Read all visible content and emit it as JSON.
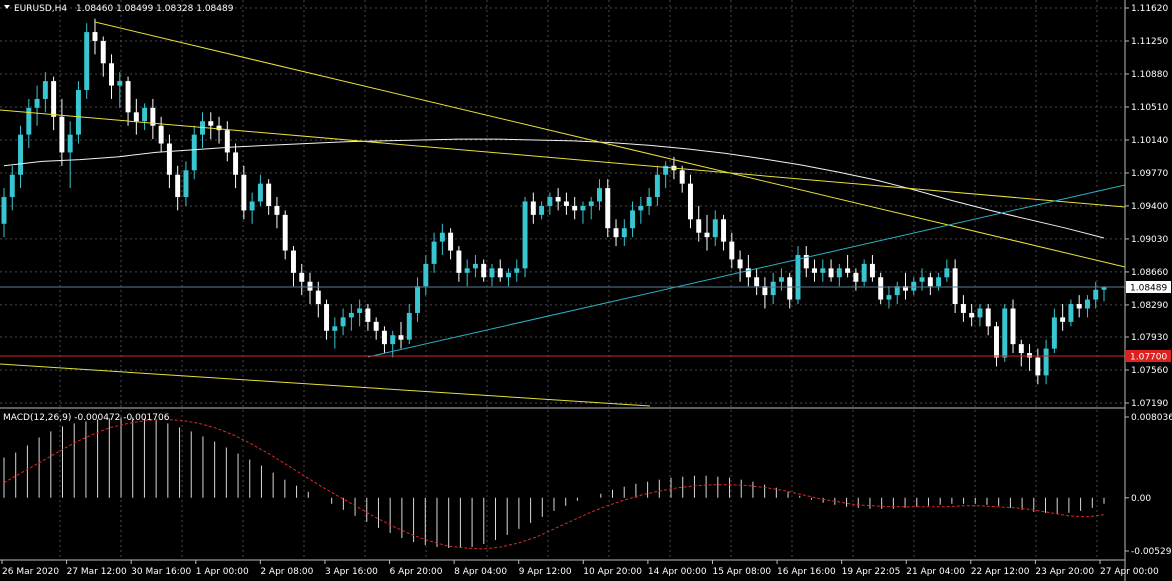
{
  "symbol_label": "EURUSD,H4",
  "ohlc_text": "1.08460 1.08499 1.08328 1.08489",
  "macd_label": "MACD(12,26,9) -0.000472 -0.001706",
  "current_price_label": "1.08489",
  "level_price_label": "1.07700",
  "colors": {
    "background": "#000000",
    "grid": "#4a4a4a",
    "bull_candle": "#39c6d1",
    "bear_candle": "#ffffff",
    "trendline": "#e8e03a",
    "ma_line": "#f2f2f2",
    "support_line": "#dd2020",
    "ascending_line": "#2bb2c4",
    "macd_histogram": "#d9d9d9",
    "macd_signal": "#e02828"
  },
  "chart_data": {
    "type": "candlestick",
    "timeframe": "H4",
    "price_axis": {
      "range": [
        1.0719,
        1.1162
      ],
      "ticks": [
        "1.11620",
        "1.11250",
        "1.10880",
        "1.10510",
        "1.10140",
        "1.09770",
        "1.09400",
        "1.09030",
        "1.08660",
        "1.08290",
        "1.07930",
        "1.07560",
        "1.07190"
      ]
    },
    "time_labels": [
      "26 Mar 2020",
      "27 Mar 12:00",
      "30 Mar 16:00",
      "1 Apr 00:00",
      "2 Apr 08:00",
      "3 Apr 16:00",
      "6 Apr 20:00",
      "8 Apr 04:00",
      "9 Apr 12:00",
      "10 Apr 20:00",
      "14 Apr 00:00",
      "15 Apr 08:00",
      "16 Apr 16:00",
      "19 Apr 22:05",
      "21 Apr 04:00",
      "22 Apr 12:00",
      "23 Apr 20:00",
      "27 Apr 00:00"
    ],
    "candles": [
      [
        1.092,
        1.096,
        1.0905,
        1.095
      ],
      [
        1.095,
        1.0985,
        1.0935,
        1.0975
      ],
      [
        1.0975,
        1.103,
        1.096,
        1.102
      ],
      [
        1.102,
        1.106,
        1.1005,
        1.105
      ],
      [
        1.105,
        1.1075,
        1.103,
        1.106
      ],
      [
        1.106,
        1.109,
        1.1045,
        1.108
      ],
      [
        1.108,
        1.1085,
        1.1025,
        1.104
      ],
      [
        1.104,
        1.106,
        1.0985,
        1.1
      ],
      [
        1.1,
        1.1035,
        1.096,
        1.102
      ],
      [
        1.102,
        1.108,
        1.101,
        1.107
      ],
      [
        1.107,
        1.1145,
        1.106,
        1.1135
      ],
      [
        1.1135,
        1.115,
        1.111,
        1.1125
      ],
      [
        1.1125,
        1.113,
        1.1085,
        1.11
      ],
      [
        1.11,
        1.111,
        1.106,
        1.1075
      ],
      [
        1.1075,
        1.109,
        1.105,
        1.108
      ],
      [
        1.108,
        1.1085,
        1.103,
        1.1045
      ],
      [
        1.1045,
        1.106,
        1.102,
        1.1035
      ],
      [
        1.1035,
        1.1055,
        1.1025,
        1.105
      ],
      [
        1.105,
        1.106,
        1.1015,
        1.103
      ],
      [
        1.103,
        1.104,
        1.1,
        1.101
      ],
      [
        1.101,
        1.102,
        1.096,
        1.0975
      ],
      [
        1.0975,
        1.0985,
        1.0935,
        1.095
      ],
      [
        1.095,
        1.099,
        1.094,
        1.098
      ],
      [
        1.098,
        1.103,
        1.097,
        1.102
      ],
      [
        1.102,
        1.1045,
        1.1005,
        1.1035
      ],
      [
        1.1035,
        1.1045,
        1.1015,
        1.103
      ],
      [
        1.103,
        1.104,
        1.101,
        1.1025
      ],
      [
        1.1025,
        1.1035,
        1.099,
        1.1
      ],
      [
        1.1,
        1.101,
        1.096,
        1.0975
      ],
      [
        1.0975,
        1.0985,
        1.0925,
        1.0935
      ],
      [
        1.0935,
        1.0955,
        1.092,
        1.0945
      ],
      [
        1.0945,
        1.0975,
        1.094,
        1.0965
      ],
      [
        1.0965,
        1.097,
        1.093,
        1.094
      ],
      [
        1.094,
        1.095,
        1.0915,
        1.093
      ],
      [
        1.093,
        1.0935,
        1.088,
        1.089
      ],
      [
        1.089,
        1.0895,
        1.085,
        1.0865
      ],
      [
        1.0865,
        1.0875,
        1.084,
        1.0855
      ],
      [
        1.0855,
        1.0865,
        1.083,
        1.0845
      ],
      [
        1.0845,
        1.0855,
        1.0815,
        1.083
      ],
      [
        1.083,
        1.0835,
        1.079,
        1.08
      ],
      [
        1.08,
        1.0815,
        1.078,
        1.0805
      ],
      [
        1.0805,
        1.0825,
        1.0795,
        1.0815
      ],
      [
        1.0815,
        1.083,
        1.08,
        1.082
      ],
      [
        1.082,
        1.0835,
        1.0805,
        1.0825
      ],
      [
        1.0825,
        1.083,
        1.08,
        1.081
      ],
      [
        1.081,
        1.0815,
        1.079,
        1.08
      ],
      [
        1.08,
        1.0805,
        1.0775,
        1.0785
      ],
      [
        1.0785,
        1.08,
        1.077,
        1.0795
      ],
      [
        1.0795,
        1.081,
        1.078,
        1.079
      ],
      [
        1.079,
        1.083,
        1.0785,
        1.082
      ],
      [
        1.082,
        1.086,
        1.081,
        1.085
      ],
      [
        1.085,
        1.0885,
        1.084,
        1.0875
      ],
      [
        1.0875,
        1.091,
        1.0865,
        1.09
      ],
      [
        1.09,
        1.092,
        1.0885,
        1.091
      ],
      [
        1.091,
        1.0915,
        1.088,
        1.089
      ],
      [
        1.089,
        1.0895,
        1.0855,
        1.0865
      ],
      [
        1.0865,
        1.088,
        1.085,
        1.087
      ],
      [
        1.087,
        1.0885,
        1.086,
        1.0875
      ],
      [
        1.0875,
        1.088,
        1.0855,
        1.086
      ],
      [
        1.086,
        1.0875,
        1.085,
        1.087
      ],
      [
        1.087,
        1.088,
        1.0855,
        1.086
      ],
      [
        1.086,
        1.087,
        1.085,
        1.0865
      ],
      [
        1.0865,
        1.088,
        1.0855,
        1.087
      ],
      [
        1.087,
        1.095,
        1.086,
        1.0945
      ],
      [
        1.0945,
        1.0955,
        1.092,
        1.093
      ],
      [
        1.093,
        1.0945,
        1.0925,
        1.094
      ],
      [
        1.094,
        1.0955,
        1.093,
        1.095
      ],
      [
        1.095,
        1.096,
        1.0935,
        1.0945
      ],
      [
        1.0945,
        1.0955,
        1.093,
        1.094
      ],
      [
        1.094,
        1.095,
        1.0925,
        1.0935
      ],
      [
        1.0935,
        1.0945,
        1.092,
        1.094
      ],
      [
        1.094,
        1.095,
        1.0925,
        1.0945
      ],
      [
        1.0945,
        1.097,
        1.0935,
        1.096
      ],
      [
        1.096,
        1.097,
        1.0905,
        1.0915
      ],
      [
        1.0915,
        1.0925,
        1.0895,
        1.0905
      ],
      [
        1.0905,
        1.0925,
        1.0895,
        1.0915
      ],
      [
        1.0915,
        1.0945,
        1.0905,
        1.0935
      ],
      [
        1.0935,
        1.095,
        1.092,
        1.094
      ],
      [
        1.094,
        1.096,
        1.093,
        1.095
      ],
      [
        1.095,
        1.0985,
        1.094,
        1.0975
      ],
      [
        1.0975,
        1.099,
        1.096,
        1.0985
      ],
      [
        1.0985,
        1.0995,
        1.097,
        1.098
      ],
      [
        1.098,
        1.0985,
        1.0955,
        1.0965
      ],
      [
        1.0965,
        1.0975,
        1.0915,
        1.0925
      ],
      [
        1.0925,
        1.094,
        1.09,
        1.091
      ],
      [
        1.091,
        1.093,
        1.089,
        1.0905
      ],
      [
        1.0905,
        1.0935,
        1.0895,
        1.0925
      ],
      [
        1.0925,
        1.093,
        1.089,
        1.09
      ],
      [
        1.09,
        1.091,
        1.087,
        1.088
      ],
      [
        1.088,
        1.089,
        1.0855,
        1.087
      ],
      [
        1.087,
        1.0885,
        1.085,
        1.086
      ],
      [
        1.086,
        1.087,
        1.084,
        1.085
      ],
      [
        1.085,
        1.086,
        1.0825,
        1.084
      ],
      [
        1.084,
        1.0865,
        1.083,
        1.0855
      ],
      [
        1.0855,
        1.087,
        1.0845,
        1.086
      ],
      [
        1.086,
        1.0865,
        1.0825,
        1.0835
      ],
      [
        1.0835,
        1.0895,
        1.083,
        1.0885
      ],
      [
        1.0885,
        1.0895,
        1.086,
        1.087
      ],
      [
        1.087,
        1.088,
        1.0855,
        1.0865
      ],
      [
        1.0865,
        1.088,
        1.0855,
        1.087
      ],
      [
        1.087,
        1.088,
        1.0855,
        1.086
      ],
      [
        1.086,
        1.0875,
        1.085,
        1.087
      ],
      [
        1.087,
        1.0885,
        1.086,
        1.0865
      ],
      [
        1.0865,
        1.087,
        1.0845,
        1.0855
      ],
      [
        1.0855,
        1.088,
        1.085,
        1.0875
      ],
      [
        1.0875,
        1.0885,
        1.0855,
        1.086
      ],
      [
        1.086,
        1.0865,
        1.083,
        1.0835
      ],
      [
        1.0835,
        1.085,
        1.0825,
        1.084
      ],
      [
        1.084,
        1.0855,
        1.083,
        1.085
      ],
      [
        1.085,
        1.0865,
        1.0835,
        1.0845
      ],
      [
        1.0845,
        1.086,
        1.084,
        1.0855
      ],
      [
        1.0855,
        1.087,
        1.0845,
        1.086
      ],
      [
        1.086,
        1.0865,
        1.084,
        1.085
      ],
      [
        1.085,
        1.0865,
        1.0845,
        1.086
      ],
      [
        1.086,
        1.088,
        1.0855,
        1.087
      ],
      [
        1.087,
        1.088,
        1.082,
        1.083
      ],
      [
        1.083,
        1.084,
        1.081,
        1.082
      ],
      [
        1.082,
        1.083,
        1.0805,
        1.0815
      ],
      [
        1.0815,
        1.083,
        1.0805,
        1.0825
      ],
      [
        1.0825,
        1.083,
        1.0795,
        1.0805
      ],
      [
        1.0805,
        1.081,
        1.076,
        1.077
      ],
      [
        1.077,
        1.083,
        1.0765,
        1.0825
      ],
      [
        1.0825,
        1.0835,
        1.0775,
        1.0785
      ],
      [
        1.0785,
        1.079,
        1.076,
        1.0775
      ],
      [
        1.0775,
        1.0785,
        1.0755,
        1.077
      ],
      [
        1.077,
        1.078,
        1.074,
        1.075
      ],
      [
        1.075,
        1.079,
        1.074,
        1.078
      ],
      [
        1.078,
        1.0825,
        1.0775,
        1.0815
      ],
      [
        1.0815,
        1.083,
        1.08,
        1.081
      ],
      [
        1.081,
        1.0835,
        1.0805,
        1.083
      ],
      [
        1.083,
        1.084,
        1.0815,
        1.0825
      ],
      [
        1.0825,
        1.084,
        1.0815,
        1.0835
      ],
      [
        1.0835,
        1.0855,
        1.0825,
        1.0846
      ],
      [
        1.0846,
        1.085,
        1.0833,
        1.0849
      ]
    ],
    "moving_average": [
      1.0985,
      1.099,
      1.0992,
      1.0995,
      1.1,
      1.1003,
      1.1006,
      1.1008,
      1.101,
      1.1012,
      1.1013,
      1.1014,
      1.1015,
      1.1015,
      1.1014,
      1.1013,
      1.1011,
      1.1008,
      1.1004,
      1.0999,
      1.0993,
      1.0986,
      1.0978,
      1.0969,
      1.0958,
      1.0946,
      1.0935,
      1.0925,
      1.0915,
      1.0904
    ],
    "macd_histogram": [
      0.004,
      0.0045,
      0.0052,
      0.006,
      0.0066,
      0.0071,
      0.0074,
      0.0076,
      0.0078,
      0.0079,
      0.008,
      0.008,
      0.0079,
      0.0077,
      0.0074,
      0.007,
      0.0066,
      0.0061,
      0.0056,
      0.005,
      0.0044,
      0.0038,
      0.0032,
      0.0025,
      0.0018,
      0.0012,
      0.0006,
      0.0,
      -0.0006,
      -0.0012,
      -0.0018,
      -0.0024,
      -0.003,
      -0.0035,
      -0.004,
      -0.0044,
      -0.0047,
      -0.0049,
      -0.005,
      -0.005,
      -0.0049,
      -0.0046,
      -0.0042,
      -0.0037,
      -0.0031,
      -0.0025,
      -0.0019,
      -0.0013,
      -0.0008,
      -0.0003,
      0.0,
      0.0004,
      0.0008,
      0.0011,
      0.0014,
      0.0016,
      0.0018,
      0.002,
      0.0021,
      0.0022,
      0.0022,
      0.0021,
      0.002,
      0.0018,
      0.0016,
      0.0013,
      0.001,
      0.0006,
      0.0002,
      -0.0002,
      -0.0005,
      -0.0007,
      -0.0009,
      -0.001,
      -0.0011,
      -0.0011,
      -0.0011,
      -0.001,
      -0.0009,
      -0.0008,
      -0.0007,
      -0.0006,
      -0.0006,
      -0.0006,
      -0.0007,
      -0.0008,
      -0.001,
      -0.0012,
      -0.0014,
      -0.0015,
      -0.0016,
      -0.0015,
      -0.0013,
      -0.001,
      -0.0006
    ],
    "macd_signal": [
      0.0015,
      0.0025,
      0.0035,
      0.0045,
      0.0055,
      0.0063,
      0.007,
      0.0074,
      0.0077,
      0.0078,
      0.0077,
      0.0074,
      0.0069,
      0.0062,
      0.0053,
      0.0043,
      0.0032,
      0.0021,
      0.001,
      0.0,
      -0.001,
      -0.002,
      -0.0029,
      -0.0037,
      -0.0043,
      -0.0048,
      -0.005,
      -0.0051,
      -0.0049,
      -0.0045,
      -0.0039,
      -0.0031,
      -0.0023,
      -0.0015,
      -0.0008,
      -0.0002,
      0.0003,
      0.0007,
      0.001,
      0.0012,
      0.0013,
      0.0013,
      0.0012,
      0.001,
      0.0007,
      0.0003,
      -0.0001,
      -0.0004,
      -0.0007,
      -0.0008,
      -0.0009,
      -0.0009,
      -0.0009,
      -0.0009,
      -0.0008,
      -0.0008,
      -0.0009,
      -0.001,
      -0.0012,
      -0.0015,
      -0.0018,
      -0.0019,
      -0.0017
    ],
    "macd_axis": {
      "range": [
        -0.005298,
        0.008036
      ],
      "ticks": [
        "0.008036",
        "0.00",
        "-0.005298"
      ]
    }
  }
}
